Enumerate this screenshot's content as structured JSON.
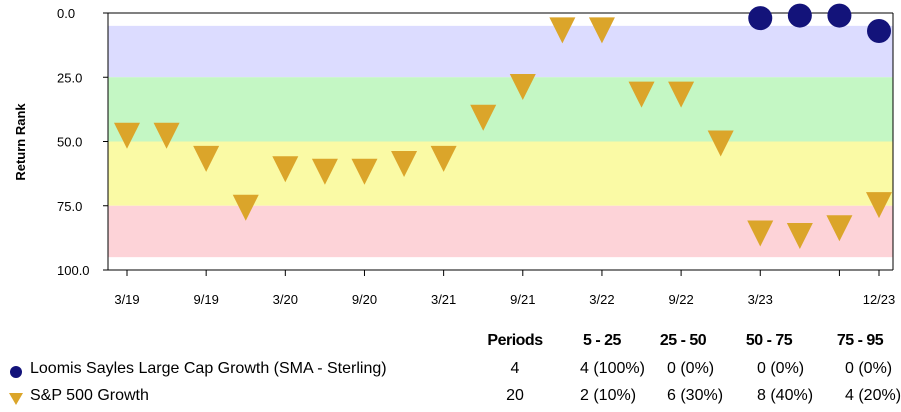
{
  "chart_data": {
    "type": "scatter",
    "ylabel": "Return Rank",
    "ylim": [
      0,
      100
    ],
    "y_inverted": true,
    "y_ticks": [
      "0.0",
      "25.0",
      "50.0",
      "75.0",
      "100.0"
    ],
    "x_ticks": [
      "3/19",
      "9/19",
      "3/20",
      "9/20",
      "3/21",
      "9/21",
      "3/22",
      "9/22",
      "3/23",
      "12/23"
    ],
    "bands": [
      {
        "from": 5,
        "to": 25,
        "color": "#dcdcff"
      },
      {
        "from": 25,
        "to": 50,
        "color": "#c4f7c4"
      },
      {
        "from": 50,
        "to": 75,
        "color": "#fafaa5"
      },
      {
        "from": 75,
        "to": 95,
        "color": "#fdd3d8"
      }
    ],
    "series": [
      {
        "name": "Loomis Sayles Large Cap Growth (SMA - Sterling)",
        "marker": "circle",
        "color": "#13137a",
        "x": [
          "3/23",
          "6/23",
          "9/23",
          "12/23"
        ],
        "y": [
          2,
          1,
          1,
          7
        ]
      },
      {
        "name": "S&P 500 Growth",
        "marker": "triangle-down",
        "color": "#dba52a",
        "x": [
          "3/19",
          "6/19",
          "9/19",
          "12/19",
          "3/20",
          "6/20",
          "9/20",
          "12/20",
          "3/21",
          "6/21",
          "9/21",
          "12/21",
          "3/22",
          "6/22",
          "9/22",
          "12/22",
          "3/23",
          "6/23",
          "9/23",
          "12/23"
        ],
        "y": [
          47,
          47,
          56,
          75,
          60,
          61,
          61,
          58,
          56,
          40,
          28,
          6,
          6,
          31,
          31,
          50,
          85,
          86,
          83,
          74
        ]
      }
    ]
  },
  "stats": {
    "headers": [
      "Periods",
      "5 - 25",
      "25 - 50",
      "50 - 75",
      "75 - 95"
    ],
    "rows": [
      {
        "name": "Loomis Sayles Large Cap Growth (SMA - Sterling)",
        "periods": "4",
        "c1": "4 (100%)",
        "c2": "0 (0%)",
        "c3": "0 (0%)",
        "c4": "0 (0%)"
      },
      {
        "name": "S&P 500 Growth",
        "periods": "20",
        "c1": "2 (10%)",
        "c2": "6 (30%)",
        "c3": "8 (40%)",
        "c4": "4 (20%)"
      }
    ]
  }
}
